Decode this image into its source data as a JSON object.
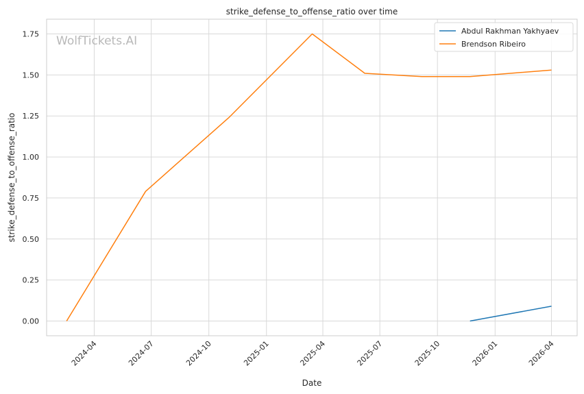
{
  "chart_data": {
    "type": "line",
    "title": "strike_defense_to_offense_ratio over time",
    "xlabel": "Date",
    "ylabel": "strike_defense_to_offense_ratio",
    "watermark": "WolfTickets.AI",
    "x_ticks": [
      "2024-04",
      "2024-07",
      "2024-10",
      "2025-01",
      "2025-04",
      "2025-07",
      "2025-10",
      "2026-01",
      "2026-04"
    ],
    "y_ticks": [
      "0.00",
      "0.25",
      "0.50",
      "0.75",
      "1.00",
      "1.25",
      "1.50",
      "1.75"
    ],
    "xlim": [
      "2024-01-16",
      "2026-05-12"
    ],
    "ylim": [
      -0.09,
      1.84
    ],
    "grid": true,
    "legend_position": "top-right",
    "series": [
      {
        "name": "Abdul Rakhman Yakhyaev",
        "color": "#1f77b4",
        "x": [
          "2025-11-22",
          "2026-04-01"
        ],
        "y": [
          0.0,
          0.09
        ]
      },
      {
        "name": "Brendson Ribeiro",
        "color": "#ff7f0e",
        "x": [
          "2024-02-17",
          "2024-06-22",
          "2024-11-02",
          "2025-03-15",
          "2025-06-07",
          "2025-09-06",
          "2025-11-22",
          "2026-04-01"
        ],
        "y": [
          0.0,
          0.79,
          1.24,
          1.75,
          1.51,
          1.49,
          1.49,
          1.53
        ]
      }
    ]
  }
}
